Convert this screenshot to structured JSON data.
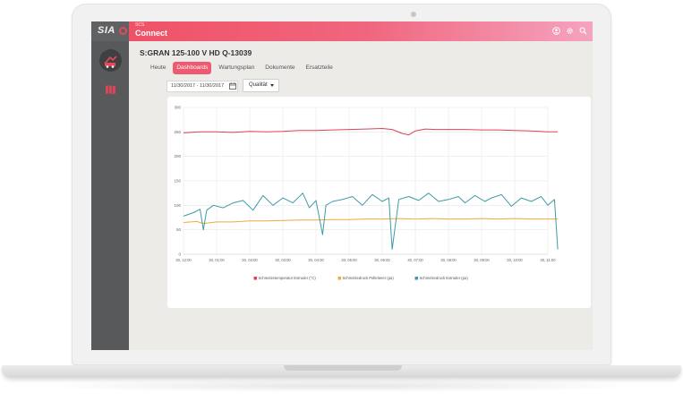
{
  "app": {
    "logo": "SIA",
    "subtitle": "SCS",
    "name": "Connect"
  },
  "topbar_icons": [
    "user-icon",
    "gear-icon",
    "search-icon"
  ],
  "sidebar": {
    "items": [
      {
        "icon": "machine-icon",
        "active": true
      },
      {
        "icon": "map-icon",
        "active": false
      }
    ]
  },
  "page": {
    "title": "S:GRAN 125-100 V HD Q-13039"
  },
  "tabs": [
    {
      "label": "Heute",
      "active": false
    },
    {
      "label": "Dashboards",
      "active": true
    },
    {
      "label": "Wartungsplan",
      "active": false
    },
    {
      "label": "Dokumente",
      "active": false
    },
    {
      "label": "Ersatzteile",
      "active": false
    }
  ],
  "filters": {
    "date_range": "11/30/2017 - 11/30/2017",
    "metric": "Qualität"
  },
  "colors": {
    "accent": "#ef5a70",
    "series_red": "#e0405a",
    "series_orange": "#f2a93b",
    "series_teal": "#3f9aa6"
  },
  "chart_data": {
    "type": "line",
    "y_ticks": [
      "300",
      "250",
      "200",
      "150",
      "100",
      "50",
      "0"
    ],
    "ylim": [
      0,
      300
    ],
    "x_ticks": [
      "30, 12:00",
      "30, 01:00",
      "30, 02:00",
      "30, 03:00",
      "30, 04:00",
      "30, 05:00",
      "30, 06:00",
      "30, 07:00",
      "30, 08:00",
      "30, 09:00",
      "30, 10:00",
      "30, 11:00"
    ],
    "grid": true,
    "legend_position": "bottom",
    "series": [
      {
        "name": "Schmelzetemperatur Extruder (°C)",
        "color": "#e0405a",
        "x": [
          0,
          0.5,
          1,
          1.5,
          2,
          2.5,
          3,
          3.5,
          4,
          4.5,
          5,
          5.5,
          6,
          6.3,
          6.6,
          6.8,
          7,
          7.3,
          7.6,
          8,
          8.5,
          9,
          9.5,
          10,
          10.5,
          11,
          11.3
        ],
        "values": [
          248,
          250,
          250,
          249,
          251,
          250,
          251,
          253,
          253,
          254,
          255,
          256,
          257,
          255,
          247,
          244,
          252,
          256,
          255,
          255,
          255,
          254,
          254,
          253,
          252,
          250,
          250
        ]
      },
      {
        "name": "Schmelzedruck Pelletierer (pa)",
        "color": "#f2a93b",
        "x": [
          0,
          0.4,
          0.6,
          1,
          1.5,
          2,
          2.5,
          3,
          3.5,
          4,
          4.5,
          5,
          5.5,
          6,
          6.5,
          7,
          7.5,
          8,
          8.5,
          9,
          9.5,
          10,
          10.5,
          11,
          11.3
        ],
        "values": [
          65,
          67,
          63,
          66,
          66,
          68,
          68,
          69,
          70,
          70,
          71,
          71,
          72,
          72,
          73,
          72,
          73,
          72,
          72,
          73,
          72,
          73,
          72,
          72,
          72
        ]
      },
      {
        "name": "Schmelzedruck Extruder (pa)",
        "color": "#3f9aa6",
        "x": [
          0,
          0.3,
          0.5,
          0.6,
          0.7,
          0.9,
          1.2,
          1.5,
          1.8,
          2.1,
          2.4,
          2.7,
          3.0,
          3.3,
          3.6,
          3.8,
          4.0,
          4.2,
          4.3,
          4.5,
          4.8,
          5.1,
          5.4,
          5.7,
          6.0,
          6.2,
          6.3,
          6.5,
          6.8,
          7.1,
          7.4,
          7.7,
          8.0,
          8.3,
          8.5,
          8.8,
          9.1,
          9.3,
          9.6,
          9.9,
          10.2,
          10.5,
          10.8,
          11.0,
          11.2,
          11.3
        ],
        "values": [
          78,
          85,
          92,
          50,
          90,
          100,
          95,
          105,
          110,
          90,
          120,
          100,
          115,
          105,
          125,
          95,
          110,
          40,
          100,
          108,
          112,
          118,
          100,
          122,
          108,
          115,
          10,
          112,
          118,
          110,
          125,
          108,
          112,
          118,
          105,
          120,
          108,
          115,
          122,
          98,
          115,
          108,
          118,
          100,
          112,
          10
        ]
      }
    ]
  }
}
